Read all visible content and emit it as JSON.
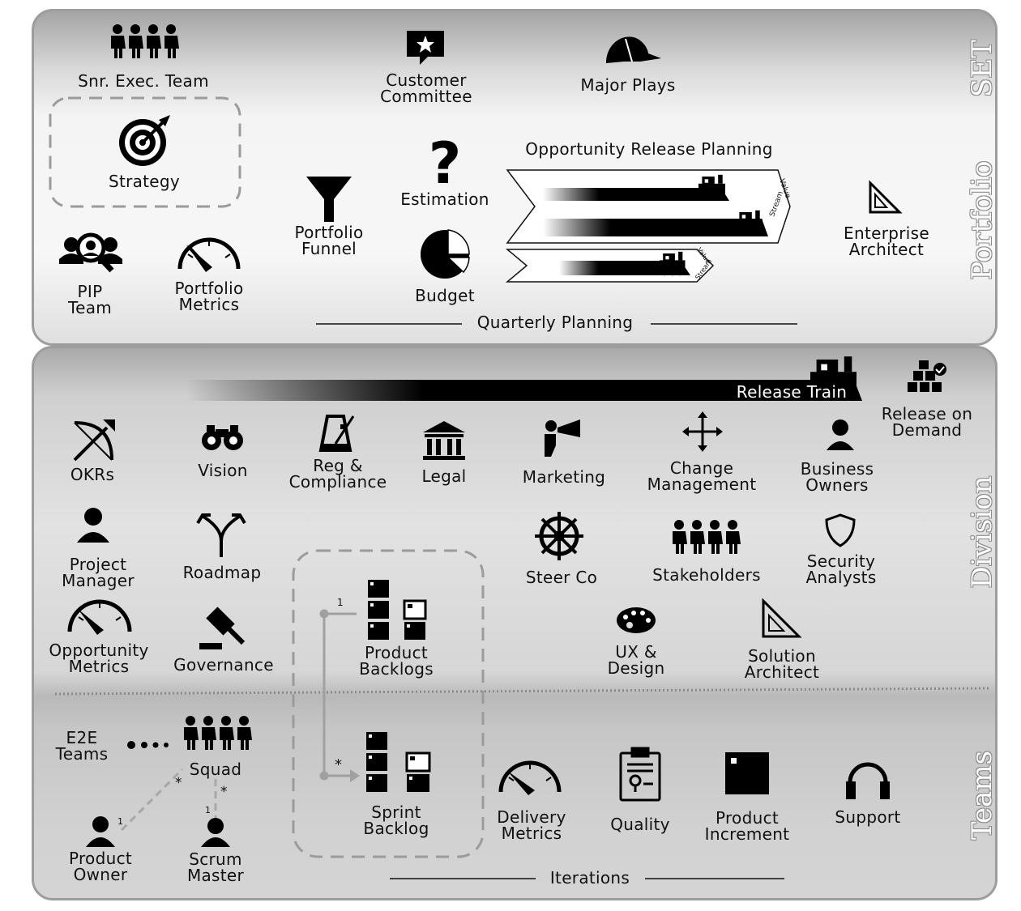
{
  "sections": {
    "set": "SET",
    "portfolio": "Portfolio",
    "division": "Division",
    "teams": "Teams"
  },
  "top": {
    "snr_exec_team": "Snr. Exec. Team",
    "customer_committee": "Customer\nCommittee",
    "major_plays": "Major Plays",
    "strategy": "Strategy",
    "estimation": "Estimation",
    "opportunity_release_planning": "Opportunity Release Planning",
    "portfolio_funnel": "Portfolio\nFunnel",
    "budget": "Budget",
    "enterprise_architect": "Enterprise\nArchitect",
    "pip_team": "PIP\nTeam",
    "portfolio_metrics": "Portfolio\nMetrics",
    "quarterly_planning": "Quarterly Planning",
    "value_stream_small": "Value",
    "stream_small": "Stream"
  },
  "division": {
    "release_train": "Release Train",
    "release_on_demand": "Release on\nDemand",
    "okrs": "OKRs",
    "vision": "Vision",
    "reg_compliance": "Reg &\nCompliance",
    "legal": "Legal",
    "marketing": "Marketing",
    "change_management": "Change\nManagement",
    "business_owners": "Business\nOwners",
    "project_manager": "Project\nManager",
    "roadmap": "Roadmap",
    "steer_co": "Steer Co",
    "stakeholders": "Stakeholders",
    "security_analysts": "Security\nAnalysts",
    "opportunity_metrics": "Opportunity\nMetrics",
    "governance": "Governance",
    "product_backlogs": "Product\nBacklogs",
    "ux_design": "UX &\nDesign",
    "solution_architect": "Solution\nArchitect"
  },
  "teams": {
    "e2e_teams": "E2E\nTeams",
    "squad": "Squad",
    "product_owner": "Product\nOwner",
    "scrum_master": "Scrum\nMaster",
    "sprint_backlog": "Sprint\nBacklog",
    "delivery_metrics": "Delivery\nMetrics",
    "quality": "Quality",
    "product_increment": "Product\nIncrement",
    "support": "Support",
    "iterations": "Iterations",
    "mult_one": "1",
    "mult_many": "*"
  },
  "colors": {
    "ink": "#111111",
    "dash": "#9b9b9b",
    "border": "#9d9d9d"
  }
}
